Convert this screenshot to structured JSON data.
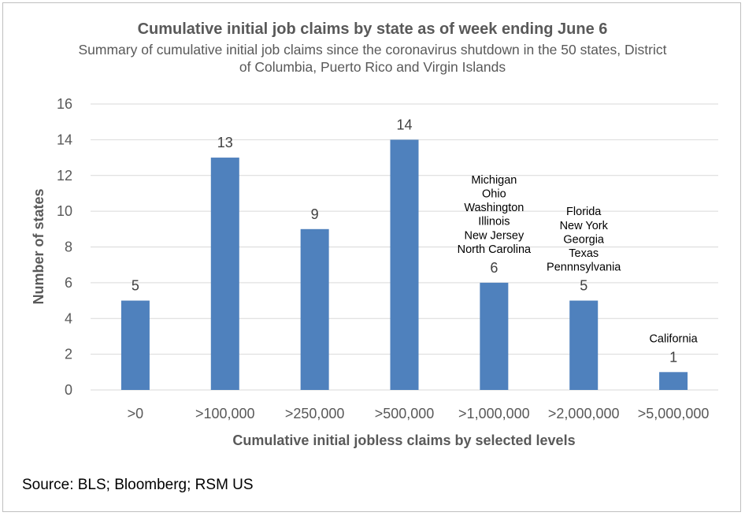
{
  "chart_data": {
    "type": "bar",
    "title": "Cumulative initial job claims by state as of week ending June 6",
    "subtitle": "Summary of cumulative initial job claims since the coronavirus shutdown in the 50 states, District of Columbia, Puerto Rico and Virgin Islands",
    "xlabel": "Cumulative initial jobless claims by selected levels",
    "ylabel": "Number of states",
    "categories": [
      ">0",
      ">100,000",
      ">250,000",
      ">500,000",
      ">1,000,000",
      ">2,000,000",
      ">5,000,000"
    ],
    "values": [
      5,
      13,
      9,
      14,
      6,
      5,
      1
    ],
    "ylim": [
      0,
      16
    ],
    "yticks": [
      0,
      2,
      4,
      6,
      8,
      10,
      12,
      14,
      16
    ],
    "grid": true,
    "bar_color": "#4f81bd",
    "annotations": [
      {
        "category": ">1,000,000",
        "lines": [
          "Michigan",
          "Ohio",
          "Washington",
          "Illinois",
          "New Jersey",
          "North Carolina"
        ]
      },
      {
        "category": ">2,000,000",
        "lines": [
          "Florida",
          "New York",
          "Georgia",
          "Texas",
          "Pennnsylvania"
        ]
      },
      {
        "category": ">5,000,000",
        "lines": [
          "California"
        ]
      }
    ]
  },
  "footer": {
    "source": "Source: BLS; Bloomberg; RSM US"
  }
}
